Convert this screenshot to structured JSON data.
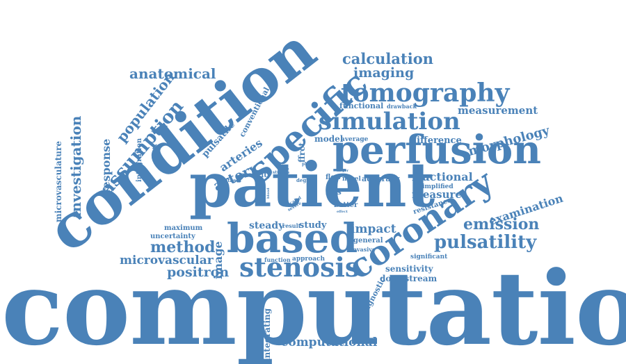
{
  "color": "#4a82b8",
  "words": {
    "computation": "computation",
    "condition": "condition",
    "patient": "patient",
    "based": "based",
    "coronary": "coronary",
    "perfusion": "perfusion",
    "specific": "specific",
    "stenosis": "stenosis",
    "tomography": "tomography",
    "simulation": "simulation",
    "calculation": "calculation",
    "imaging": "imaging",
    "anatomical": "anatomical",
    "population": "population",
    "assumption": "assumption",
    "investigation": "investigation",
    "response": "response",
    "microvasculature": "microvasculature",
    "integration": "integration",
    "pulsatile": "pulsatile",
    "conventional": "conventional",
    "arteries": "arteries",
    "artery": "artery",
    "ffrct": "ffrct",
    "functional": "functional",
    "drawback": "drawback",
    "measurement": "measurement",
    "morphology": "morphology",
    "difference": "difference",
    "model": "model",
    "average": "average",
    "fractional": "fractional",
    "simplified": "simplified",
    "measure": "measure",
    "resistance": "resistance",
    "examination": "examination",
    "emission": "emission",
    "pulsatility": "pulsatility",
    "significant": "significant",
    "sensitivity": "sensitivity",
    "downstream": "downstream",
    "diagnostic": "diagnostic",
    "computational": "computational",
    "integrating": "integrating",
    "method": "method",
    "microvascular": "microvascular",
    "positron": "positron",
    "image": "image",
    "maximum": "maximum",
    "uncertainty": "uncertainty",
    "steady": "steady",
    "result": "result",
    "study": "study",
    "impact": "impact",
    "general": "general",
    "invasive": "invasive",
    "function": "function",
    "approach": "approach",
    "ffrs": "ffrs",
    "better": "better",
    "effect": "effect",
    "severity": "severity",
    "dataset": "dataset",
    "studies": "studies",
    "phase": "phase",
    "flow": "flow",
    "novel": "novel",
    "accuracy": "accuracy",
    "degree": "degree",
    "larger": "larger",
    "scaled": "scaled",
    "severe": "severe",
    "blood": "blood",
    "type": "type"
  }
}
